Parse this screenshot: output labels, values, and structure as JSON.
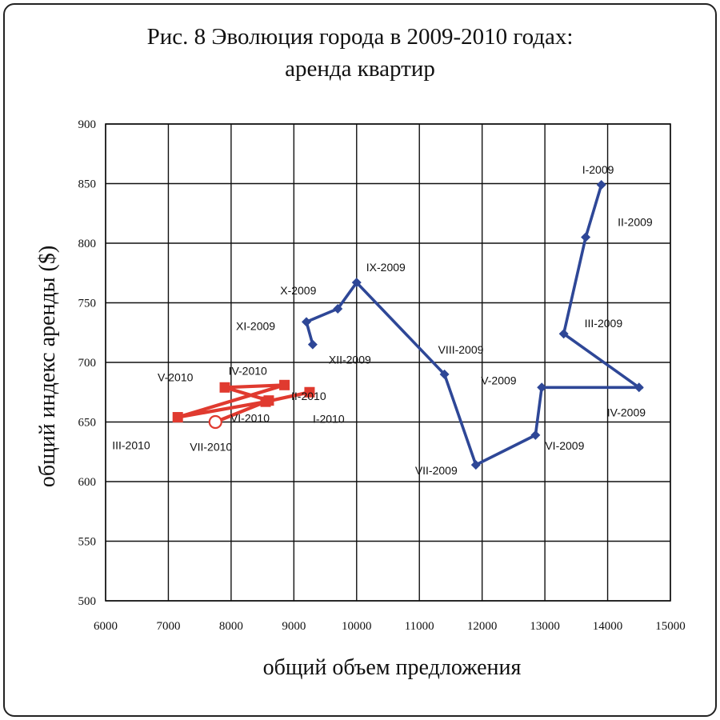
{
  "chart_data": {
    "type": "line",
    "title_line1": "Рис. 8 Эволюция города в 2009-2010 годах:",
    "title_line2": "аренда квартир",
    "xlabel": "общий объем предложения",
    "ylabel": "общий индекс аренды ($)",
    "xlim": [
      6000,
      15000
    ],
    "ylim": [
      500,
      900
    ],
    "xticks": [
      "6000",
      "7000",
      "8000",
      "9000",
      "10000",
      "11000",
      "12000",
      "13000",
      "14000",
      "15000"
    ],
    "yticks": [
      "500",
      "550",
      "600",
      "650",
      "700",
      "750",
      "800",
      "850",
      "900"
    ],
    "grid": true,
    "series": [
      {
        "color": "#2e4797",
        "marker": "diamond",
        "points": [
          {
            "label": "I-2009",
            "x": 13900,
            "y": 849
          },
          {
            "label": "II-2009",
            "x": 13650,
            "y": 805
          },
          {
            "label": "III-2009",
            "x": 13300,
            "y": 724
          },
          {
            "label": "IV-2009",
            "x": 14500,
            "y": 679
          },
          {
            "label": "V-2009",
            "x": 12950,
            "y": 679
          },
          {
            "label": "VI-2009",
            "x": 12850,
            "y": 639
          },
          {
            "label": "VII-2009",
            "x": 11900,
            "y": 614
          },
          {
            "label": "VIII-2009",
            "x": 11400,
            "y": 690
          },
          {
            "label": "IX-2009",
            "x": 10000,
            "y": 767
          },
          {
            "label": "X-2009",
            "x": 9700,
            "y": 745
          },
          {
            "label": "XI-2009",
            "x": 9200,
            "y": 734
          },
          {
            "label": "XII-2009",
            "x": 9300,
            "y": 715
          }
        ]
      },
      {
        "color": "#e03a2f",
        "marker": "square",
        "points": [
          {
            "label": "I-2010",
            "x": 9250,
            "y": 675
          },
          {
            "label": "II-2010",
            "x": 8550,
            "y": 667
          },
          {
            "label": "III-2010",
            "x": 7150,
            "y": 654
          },
          {
            "label": "IV-2010",
            "x": 8850,
            "y": 681
          },
          {
            "label": "V-2010",
            "x": 7900,
            "y": 679
          },
          {
            "label": "VI-2010",
            "x": 8600,
            "y": 668
          },
          {
            "label": "VII-2010",
            "x": 7750,
            "y": 650
          }
        ]
      }
    ]
  }
}
